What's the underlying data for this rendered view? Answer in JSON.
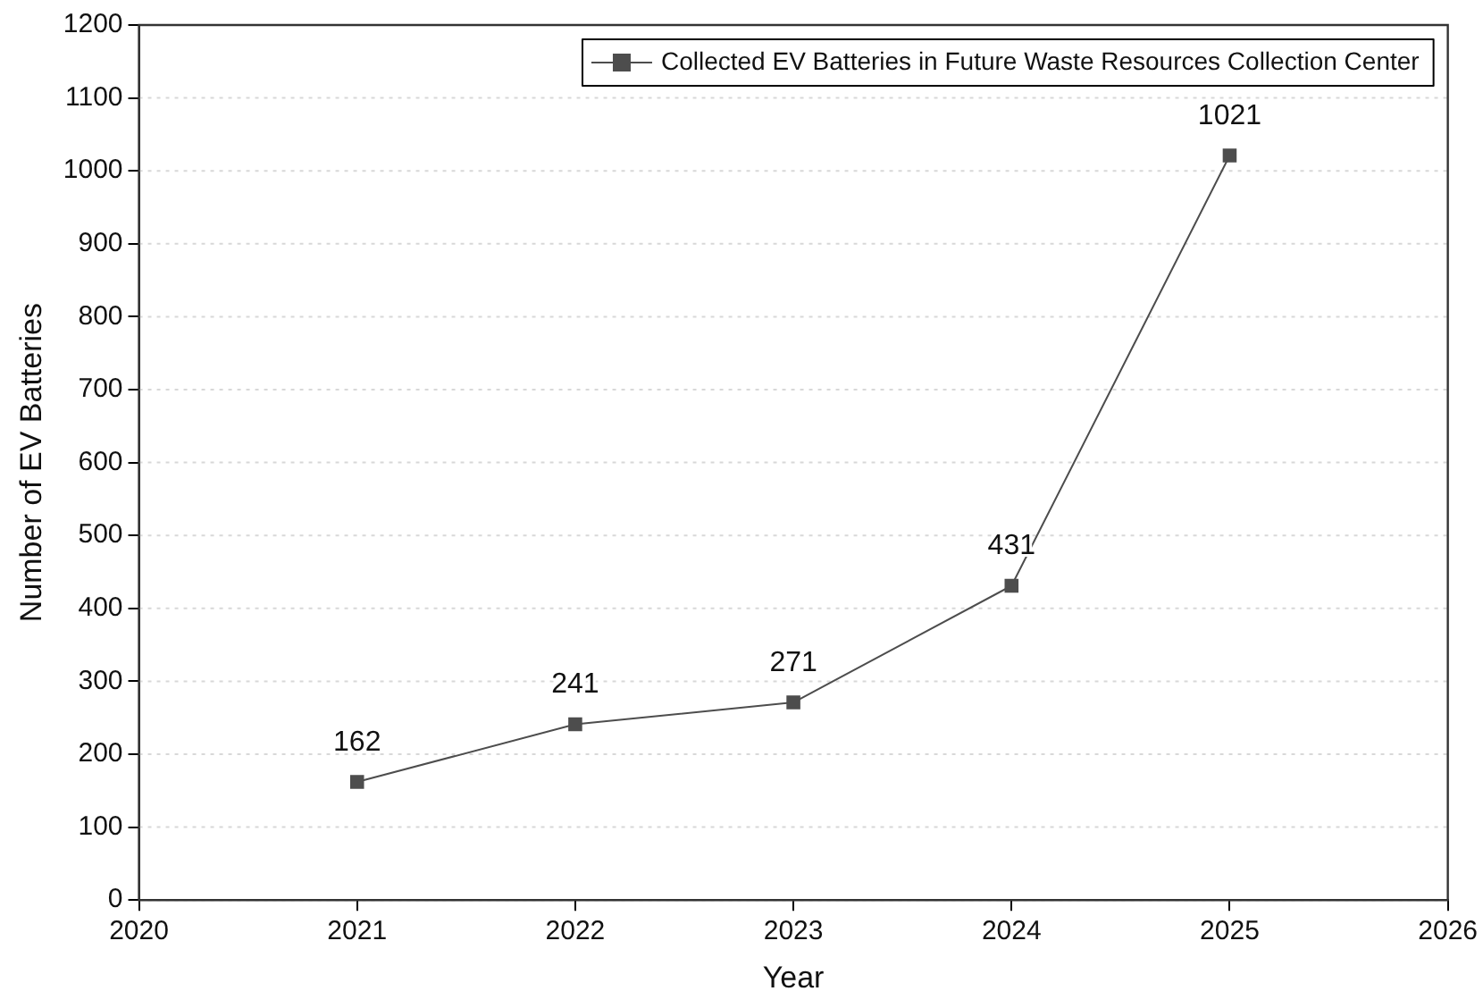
{
  "chart_data": {
    "type": "line",
    "xlabel": "Year",
    "ylabel": "Number of EV Batteries",
    "x": [
      2021,
      2022,
      2023,
      2024,
      2025
    ],
    "series": [
      {
        "name": "Collected EV Batteries in Future Waste Resources Collection Center",
        "color": "#4d4d4d",
        "values": [
          162,
          241,
          271,
          431,
          1021
        ]
      }
    ],
    "xlim": [
      2020,
      2026
    ],
    "xticks": [
      2020,
      2021,
      2022,
      2023,
      2024,
      2025,
      2026
    ],
    "ylim": [
      0,
      1200
    ],
    "yticks": [
      0,
      100,
      200,
      300,
      400,
      500,
      600,
      700,
      800,
      900,
      1000,
      1100,
      1200
    ],
    "grid": "y",
    "legend": "top right",
    "marker": "square",
    "line_style": "solid",
    "data_labels": true
  }
}
